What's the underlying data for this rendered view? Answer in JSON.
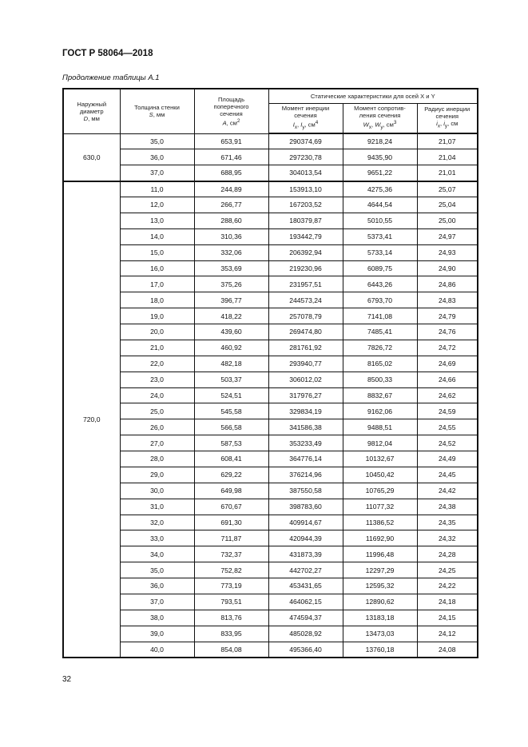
{
  "header": {
    "doc_title": "ГОСТ Р 58064—2018",
    "caption": "Продолжение таблицы А.1"
  },
  "table": {
    "col_headers": {
      "diameter": [
        "Наружный",
        "диаметр"
      ],
      "diameter_unit_sym": "D",
      "diameter_unit": ", мм",
      "wall": [
        "Толщина стенки"
      ],
      "wall_sym": "S",
      "wall_unit": ", мм",
      "area": [
        "Площадь",
        "поперечного",
        "сечения"
      ],
      "area_sym": "A",
      "area_unit": ", см",
      "area_exp": "2",
      "group": "Статические характеристики  для осей X и Y",
      "inertia": [
        "Момент инерции",
        "сечения"
      ],
      "inertia_sym": "I",
      "inertia_sub_x": "x",
      "inertia_sub_y": "y",
      "inertia_unit": ", см",
      "inertia_exp": "4",
      "resist": [
        "Момент сопротив-",
        "ления сечения"
      ],
      "resist_sym": "W",
      "resist_sub_x": "x",
      "resist_sub_y": "y",
      "resist_unit": ", см",
      "resist_exp": "3",
      "radius": [
        "Радиус инерции",
        "сечения"
      ],
      "radius_sym": "i",
      "radius_sub_x": "x",
      "radius_sub_y": "y",
      "radius_unit": ", см"
    },
    "groups": [
      {
        "diameter": "630,0",
        "rows": [
          [
            "35,0",
            "653,91",
            "290374,69",
            "9218,24",
            "21,07"
          ],
          [
            "36,0",
            "671,46",
            "297230,78",
            "9435,90",
            "21,04"
          ],
          [
            "37,0",
            "688,95",
            "304013,54",
            "9651,22",
            "21,01"
          ]
        ]
      },
      {
        "diameter": "720,0",
        "rows": [
          [
            "11,0",
            "244,89",
            "153913,10",
            "4275,36",
            "25,07"
          ],
          [
            "12,0",
            "266,77",
            "167203,52",
            "4644,54",
            "25,04"
          ],
          [
            "13,0",
            "288,60",
            "180379,87",
            "5010,55",
            "25,00"
          ],
          [
            "14,0",
            "310,36",
            "193442,79",
            "5373,41",
            "24,97"
          ],
          [
            "15,0",
            "332,06",
            "206392,94",
            "5733,14",
            "24,93"
          ],
          [
            "16,0",
            "353,69",
            "219230,96",
            "6089,75",
            "24,90"
          ],
          [
            "17,0",
            "375,26",
            "231957,51",
            "6443,26",
            "24,86"
          ],
          [
            "18,0",
            "396,77",
            "244573,24",
            "6793,70",
            "24,83"
          ],
          [
            "19,0",
            "418,22",
            "257078,79",
            "7141,08",
            "24,79"
          ],
          [
            "20,0",
            "439,60",
            "269474,80",
            "7485,41",
            "24,76"
          ],
          [
            "21,0",
            "460,92",
            "281761,92",
            "7826,72",
            "24,72"
          ],
          [
            "22,0",
            "482,18",
            "293940,77",
            "8165,02",
            "24,69"
          ],
          [
            "23,0",
            "503,37",
            "306012,02",
            "8500,33",
            "24,66"
          ],
          [
            "24,0",
            "524,51",
            "317976,27",
            "8832,67",
            "24,62"
          ],
          [
            "25,0",
            "545,58",
            "329834,19",
            "9162,06",
            "24,59"
          ],
          [
            "26,0",
            "566,58",
            "341586,38",
            "9488,51",
            "24,55"
          ],
          [
            "27,0",
            "587,53",
            "353233,49",
            "9812,04",
            "24,52"
          ],
          [
            "28,0",
            "608,41",
            "364776,14",
            "10132,67",
            "24,49"
          ],
          [
            "29,0",
            "629,22",
            "376214,96",
            "10450,42",
            "24,45"
          ],
          [
            "30,0",
            "649,98",
            "387550,58",
            "10765,29",
            "24,42"
          ],
          [
            "31,0",
            "670,67",
            "398783,60",
            "11077,32",
            "24,38"
          ],
          [
            "32,0",
            "691,30",
            "409914,67",
            "11386,52",
            "24,35"
          ],
          [
            "33,0",
            "711,87",
            "420944,39",
            "11692,90",
            "24,32"
          ],
          [
            "34,0",
            "732,37",
            "431873,39",
            "11996,48",
            "24,28"
          ],
          [
            "35,0",
            "752,82",
            "442702,27",
            "12297,29",
            "24,25"
          ],
          [
            "36,0",
            "773,19",
            "453431,65",
            "12595,32",
            "24,22"
          ],
          [
            "37,0",
            "793,51",
            "464062,15",
            "12890,62",
            "24,18"
          ],
          [
            "38,0",
            "813,76",
            "474594,37",
            "13183,18",
            "24,15"
          ],
          [
            "39,0",
            "833,95",
            "485028,92",
            "13473,03",
            "24,12"
          ],
          [
            "40,0",
            "854,08",
            "495366,40",
            "13760,18",
            "24,08"
          ]
        ]
      }
    ]
  },
  "footer": {
    "page_number": "32"
  }
}
